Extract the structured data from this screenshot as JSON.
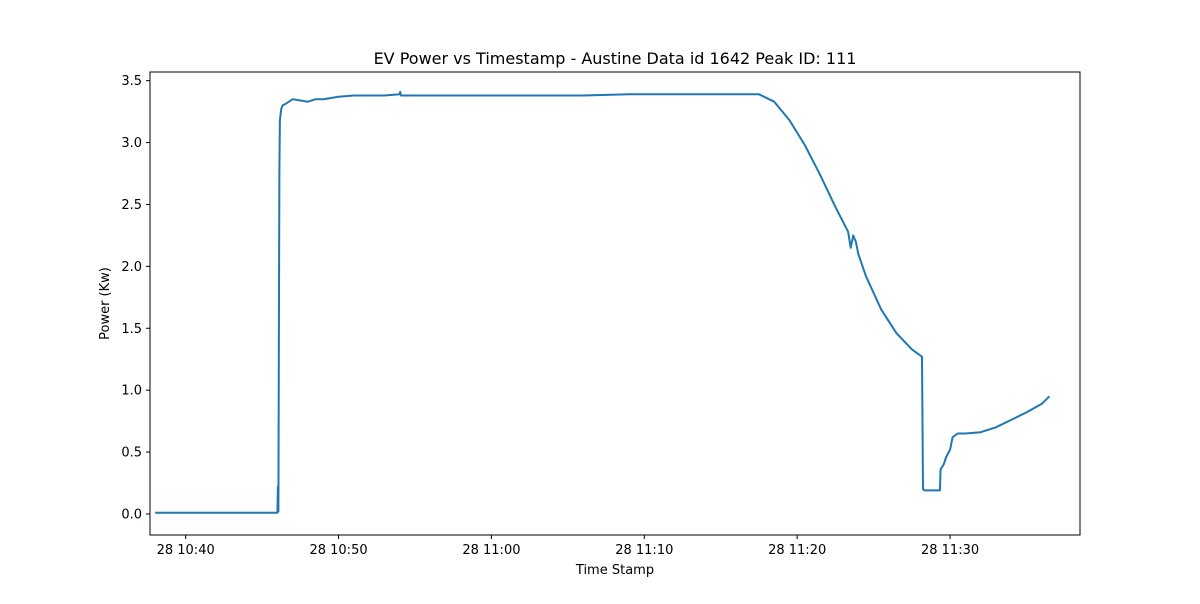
{
  "chart_data": {
    "type": "line",
    "title": "EV Power vs Timestamp - Austine Data id 1642 Peak ID: 111",
    "xlabel": "Time Stamp",
    "ylabel": "Power (Kw)",
    "x_is_time": true,
    "xlim": [
      "10:37:40",
      "11:38:30"
    ],
    "ylim": [
      -0.17,
      3.57
    ],
    "x_ticks": [
      {
        "value": "10:40",
        "label": "28 10:40"
      },
      {
        "value": "10:50",
        "label": "28 10:50"
      },
      {
        "value": "11:00",
        "label": "28 11:00"
      },
      {
        "value": "11:10",
        "label": "28 11:10"
      },
      {
        "value": "11:20",
        "label": "28 11:20"
      },
      {
        "value": "11:30",
        "label": "28 11:30"
      }
    ],
    "y_ticks": [
      {
        "value": 0.0,
        "label": "0.0"
      },
      {
        "value": 0.5,
        "label": "0.5"
      },
      {
        "value": 1.0,
        "label": "1.0"
      },
      {
        "value": 1.5,
        "label": "1.5"
      },
      {
        "value": 2.0,
        "label": "2.0"
      },
      {
        "value": 2.5,
        "label": "2.5"
      },
      {
        "value": 3.0,
        "label": "3.0"
      },
      {
        "value": 3.5,
        "label": "3.5"
      }
    ],
    "grid": false,
    "legend": "none",
    "series": [
      {
        "color": "#1f77b4",
        "x": [
          "10:38:00",
          "10:46:00",
          "10:46:02",
          "10:46:04",
          "10:46:06",
          "10:46:08",
          "10:46:10",
          "10:46:15",
          "10:46:20",
          "10:46:30",
          "10:46:45",
          "10:47:00",
          "10:47:30",
          "10:48:00",
          "10:48:30",
          "10:49:00",
          "10:50:00",
          "10:51:00",
          "10:52:00",
          "10:53:00",
          "10:54:00",
          "10:54:02",
          "10:54:05",
          "10:55:00",
          "10:57:00",
          "11:00:00",
          "11:03:00",
          "11:06:00",
          "11:09:00",
          "11:12:00",
          "11:15:00",
          "11:17:30",
          "11:18:30",
          "11:19:30",
          "11:20:30",
          "11:21:30",
          "11:22:30",
          "11:23:20",
          "11:23:30",
          "11:23:40",
          "11:23:50",
          "11:24:00",
          "11:24:30",
          "11:25:30",
          "11:26:30",
          "11:27:30",
          "11:28:10",
          "11:28:14",
          "11:28:20",
          "11:29:20",
          "11:29:23",
          "11:29:35",
          "11:29:45",
          "11:30:00",
          "11:30:10",
          "11:30:30",
          "11:31:00",
          "11:32:00",
          "11:33:00",
          "11:34:00",
          "11:35:00",
          "11:36:00",
          "11:36:30"
        ],
        "y": [
          0.01,
          0.01,
          0.22,
          0.02,
          1.5,
          2.8,
          3.18,
          3.27,
          3.3,
          3.31,
          3.33,
          3.35,
          3.34,
          3.33,
          3.35,
          3.35,
          3.37,
          3.38,
          3.38,
          3.38,
          3.39,
          3.41,
          3.38,
          3.38,
          3.38,
          3.38,
          3.38,
          3.38,
          3.39,
          3.39,
          3.39,
          3.39,
          3.33,
          3.18,
          2.98,
          2.74,
          2.48,
          2.28,
          2.15,
          2.25,
          2.2,
          2.1,
          1.92,
          1.65,
          1.46,
          1.33,
          1.27,
          0.2,
          0.19,
          0.19,
          0.36,
          0.4,
          0.46,
          0.52,
          0.62,
          0.65,
          0.65,
          0.66,
          0.7,
          0.76,
          0.82,
          0.89,
          0.95
        ]
      }
    ]
  }
}
